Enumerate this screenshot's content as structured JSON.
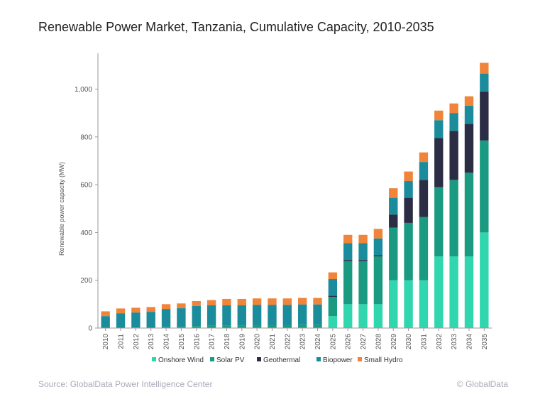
{
  "chart_data": {
    "type": "stacked-bar",
    "title": "Renewable Power Market, Tanzania, Cumulative Capacity, 2010-2035",
    "y_label": "Renewable power capacity (MW)",
    "source": "Source: GlobalData Power Intelligence Center",
    "credit": "© GlobalData",
    "categories": [
      "2010",
      "2011",
      "2012",
      "2013",
      "2014",
      "2015",
      "2016",
      "2017",
      "2018",
      "2019",
      "2020",
      "2021",
      "2022",
      "2023",
      "2024",
      "2025",
      "2026",
      "2027",
      "2028",
      "2029",
      "2030",
      "2031",
      "2032",
      "2033",
      "2034",
      "2035"
    ],
    "series": [
      {
        "name": "Onshore Wind",
        "color": "#2fd6ae",
        "values": [
          0,
          0,
          0,
          0,
          0,
          0,
          0,
          0,
          0,
          0,
          0,
          0,
          0,
          0,
          0,
          50,
          100,
          100,
          100,
          200,
          200,
          200,
          300,
          300,
          300,
          400
        ]
      },
      {
        "name": "Solar PV",
        "color": "#1a9a80",
        "values": [
          0,
          0,
          2,
          3,
          5,
          5,
          8,
          10,
          10,
          10,
          12,
          12,
          12,
          14,
          14,
          80,
          180,
          180,
          200,
          220,
          240,
          265,
          290,
          320,
          350,
          385
        ]
      },
      {
        "name": "Geothermal",
        "color": "#2b2d45",
        "values": [
          0,
          0,
          0,
          0,
          0,
          0,
          0,
          0,
          0,
          0,
          0,
          0,
          0,
          0,
          0,
          5,
          5,
          5,
          5,
          55,
          105,
          155,
          205,
          205,
          205,
          205
        ]
      },
      {
        "name": "Biopower",
        "color": "#1b8c9c",
        "values": [
          50,
          62,
          63,
          65,
          75,
          78,
          85,
          85,
          85,
          85,
          85,
          85,
          85,
          85,
          85,
          70,
          70,
          70,
          70,
          70,
          70,
          75,
          75,
          75,
          75,
          75
        ]
      },
      {
        "name": "Small Hydro",
        "color": "#f0843a",
        "values": [
          20,
          20,
          20,
          20,
          20,
          20,
          20,
          22,
          27,
          27,
          27,
          27,
          27,
          27,
          27,
          28,
          35,
          35,
          40,
          40,
          40,
          40,
          40,
          40,
          40,
          45
        ]
      }
    ],
    "ylim": [
      0,
      1150
    ],
    "yticks": [
      0,
      200,
      400,
      600,
      800,
      {
        "value": 1000,
        "label": "1,000"
      }
    ],
    "legend": "bottom"
  }
}
